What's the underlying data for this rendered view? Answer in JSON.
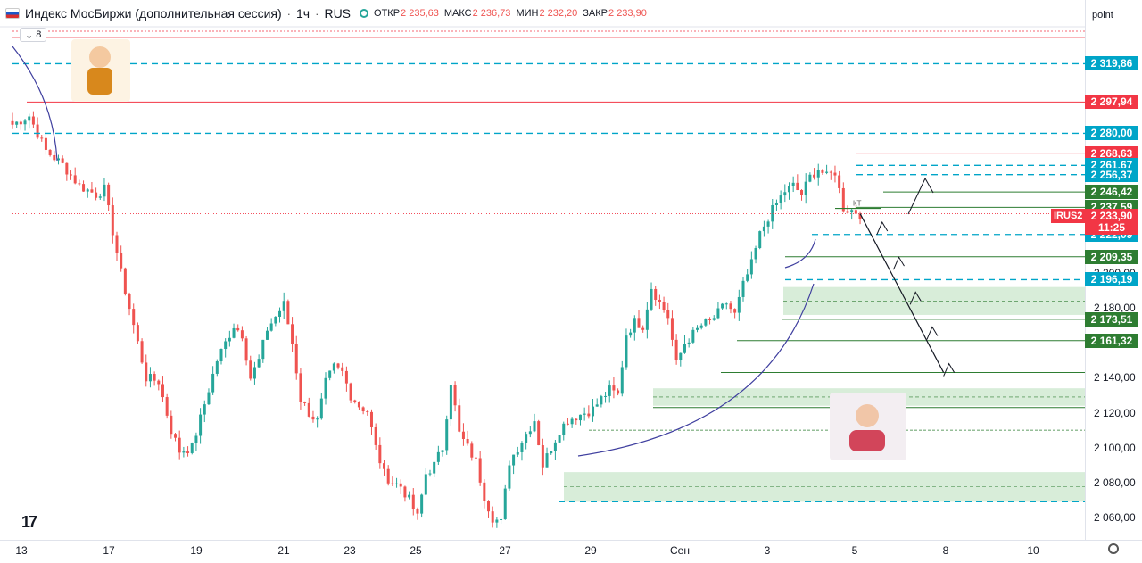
{
  "header": {
    "title": "Индекс МосБиржи (дополнительная сессия)",
    "timeframe": "1ч",
    "market": "RUS",
    "open_label": "ОТКР",
    "open_value": "2 235,63",
    "high_label": "МАКС",
    "high_value": "2 236,73",
    "low_label": "МИН",
    "low_value": "2 232,20",
    "close_label": "ЗАКР",
    "close_value": "2 233,90"
  },
  "indicator_toggle": {
    "count": "8"
  },
  "axis": {
    "unit": "point"
  },
  "last_price": {
    "ticker": "IRUS2",
    "value": "2 233,90",
    "countdown": "11:25"
  },
  "annotation_kt": "КТ",
  "colors": {
    "up": "#26a69a",
    "down": "#ef5350",
    "red_level": "#f23645",
    "cyan_level": "#00a5c8",
    "green_level": "#2e7d32",
    "green_zone": "#c8e6c9",
    "arc": "#3f3f9f"
  },
  "chart_data": {
    "type": "candlestick",
    "x_labels": [
      "13",
      "17",
      "19",
      "21",
      "23",
      "25",
      "27",
      "29",
      "Сен",
      "3",
      "5",
      "8",
      "10"
    ],
    "ylim": [
      2052,
      2345
    ],
    "y_ticks": [
      "2 060,00",
      "2 080,00",
      "2 100,00",
      "2 120,00",
      "2 140,00",
      "2 180,00",
      "2 200,00"
    ],
    "price_path": [
      [
        0,
        2285
      ],
      [
        4,
        2290
      ],
      [
        8,
        2270
      ],
      [
        12,
        2262
      ],
      [
        16,
        2250
      ],
      [
        20,
        2245
      ],
      [
        22,
        2248
      ],
      [
        26,
        2200
      ],
      [
        29,
        2170
      ],
      [
        32,
        2140
      ],
      [
        35,
        2138
      ],
      [
        38,
        2110
      ],
      [
        40,
        2098
      ],
      [
        43,
        2100
      ],
      [
        46,
        2125
      ],
      [
        49,
        2150
      ],
      [
        51,
        2160
      ],
      [
        53,
        2170
      ],
      [
        55,
        2165
      ],
      [
        57,
        2140
      ],
      [
        59,
        2150
      ],
      [
        61,
        2168
      ],
      [
        63,
        2175
      ],
      [
        65,
        2182
      ],
      [
        67,
        2160
      ],
      [
        69,
        2128
      ],
      [
        71,
        2120
      ],
      [
        73,
        2115
      ],
      [
        75,
        2137
      ],
      [
        77,
        2146
      ],
      [
        79,
        2143
      ],
      [
        81,
        2130
      ],
      [
        83,
        2124
      ],
      [
        85,
        2121
      ],
      [
        87,
        2100
      ],
      [
        89,
        2085
      ],
      [
        91,
        2080
      ],
      [
        93,
        2078
      ],
      [
        95,
        2070
      ],
      [
        97,
        2060
      ],
      [
        99,
        2085
      ],
      [
        101,
        2090
      ],
      [
        103,
        2100
      ],
      [
        105,
        2138
      ],
      [
        107,
        2108
      ],
      [
        109,
        2100
      ],
      [
        111,
        2092
      ],
      [
        113,
        2072
      ],
      [
        115,
        2060
      ],
      [
        117,
        2057
      ],
      [
        119,
        2092
      ],
      [
        121,
        2100
      ],
      [
        123,
        2108
      ],
      [
        125,
        2116
      ],
      [
        127,
        2090
      ],
      [
        129,
        2100
      ],
      [
        131,
        2110
      ],
      [
        133,
        2116
      ],
      [
        135,
        2118
      ],
      [
        137,
        2120
      ],
      [
        139,
        2122
      ],
      [
        141,
        2128
      ],
      [
        143,
        2133
      ],
      [
        145,
        2130
      ],
      [
        147,
        2165
      ],
      [
        149,
        2172
      ],
      [
        151,
        2170
      ],
      [
        153,
        2192
      ],
      [
        155,
        2183
      ],
      [
        157,
        2175
      ],
      [
        159,
        2148
      ],
      [
        161,
        2160
      ],
      [
        163,
        2165
      ],
      [
        165,
        2170
      ],
      [
        167,
        2172
      ],
      [
        169,
        2177
      ],
      [
        171,
        2183
      ],
      [
        173,
        2176
      ],
      [
        175,
        2193
      ],
      [
        177,
        2205
      ],
      [
        179,
        2222
      ],
      [
        181,
        2232
      ],
      [
        183,
        2240
      ],
      [
        185,
        2247
      ],
      [
        187,
        2250
      ],
      [
        189,
        2245
      ],
      [
        191,
        2255
      ],
      [
        193,
        2260
      ],
      [
        195,
        2255
      ],
      [
        197,
        2258
      ],
      [
        199,
        2237
      ],
      [
        201,
        2236
      ],
      [
        203,
        2234
      ]
    ],
    "levels": [
      {
        "price": 2319.86,
        "label": "2 319,86",
        "kind": "cyan",
        "style": "dashed"
      },
      {
        "price": 2297.94,
        "label": "2 297,94",
        "kind": "red",
        "style": "solid"
      },
      {
        "price": 2280.0,
        "label": "2 280,00",
        "kind": "cyan",
        "style": "dashed"
      },
      {
        "price": 2268.63,
        "label": "2 268,63",
        "kind": "red",
        "style": "solid"
      },
      {
        "price": 2261.67,
        "label": "2 261,67",
        "kind": "cyan",
        "style": "dashed"
      },
      {
        "price": 2256.37,
        "label": "2 256,37",
        "kind": "cyan",
        "style": "dashed"
      },
      {
        "price": 2246.42,
        "label": "2 246,42",
        "kind": "green",
        "style": "solid"
      },
      {
        "price": 2237.59,
        "label": "2 237,59",
        "kind": "green",
        "style": "solid"
      },
      {
        "price": 2222.09,
        "label": "2 222,09",
        "kind": "cyan",
        "style": "dashed"
      },
      {
        "price": 2209.35,
        "label": "2 209,35",
        "kind": "green",
        "style": "solid"
      },
      {
        "price": 2196.19,
        "label": "2 196,19",
        "kind": "cyan",
        "style": "dashed"
      },
      {
        "price": 2173.51,
        "label": "2 173,51",
        "kind": "green",
        "style": "solid"
      },
      {
        "price": 2161.32,
        "label": "2 161,32",
        "kind": "green",
        "style": "solid"
      }
    ],
    "zones": [
      {
        "from": 2176,
        "to": 2192
      },
      {
        "from": 2124,
        "to": 2134
      },
      {
        "from": 2069,
        "to": 2086
      }
    ],
    "forecast_path": [
      [
        203,
        2234
      ],
      [
        207,
        2224
      ],
      [
        211,
        2204
      ],
      [
        215,
        2184
      ],
      [
        219,
        2164
      ],
      [
        223,
        2143
      ]
    ]
  }
}
